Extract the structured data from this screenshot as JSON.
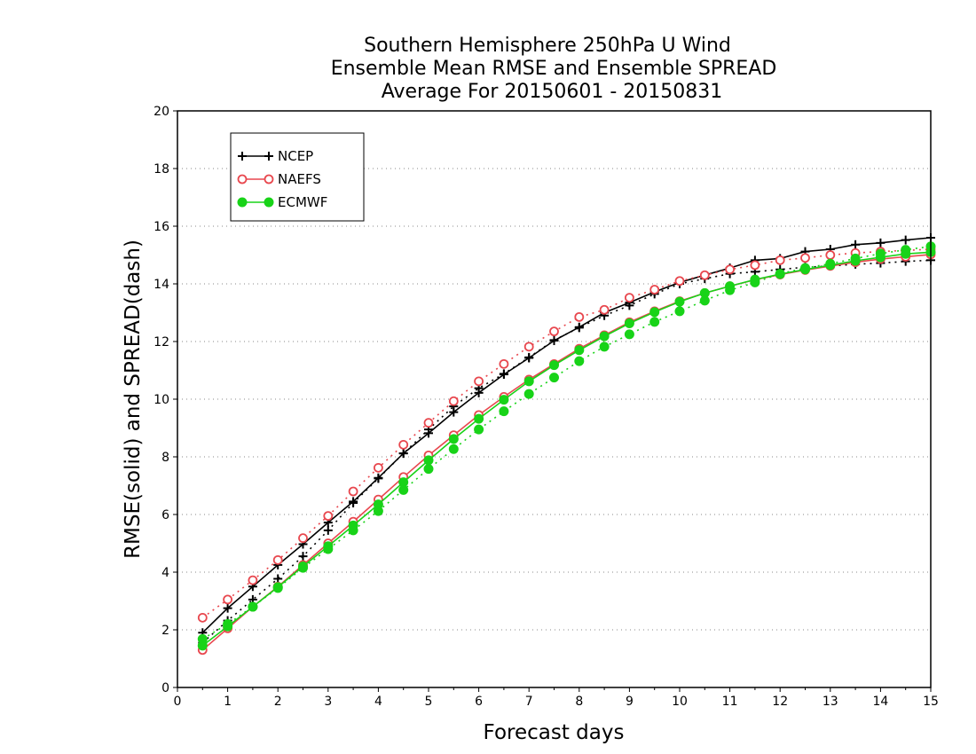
{
  "chart_data": {
    "type": "line",
    "title": [
      "Southern Hemisphere 250hPa U Wind",
      "Ensemble Mean RMSE and Ensemble SPREAD",
      "Average For 20150601 - 20150831"
    ],
    "xlabel": "Forecast days",
    "ylabel": "RMSE(solid) and SPREAD(dash)",
    "xlim": [
      0,
      15
    ],
    "ylim": [
      0,
      20
    ],
    "x_ticks": [
      "0",
      "1",
      "2",
      "3",
      "4",
      "5",
      "6",
      "7",
      "8",
      "9",
      "10",
      "11",
      "12",
      "13",
      "14",
      "15"
    ],
    "y_ticks": [
      "0",
      "2",
      "4",
      "6",
      "8",
      "10",
      "12",
      "14",
      "16",
      "18",
      "20"
    ],
    "grid": "horizontal dotted",
    "legend_position": "top-left",
    "x": [
      0.5,
      1,
      1.5,
      2,
      2.5,
      3,
      3.5,
      4,
      4.5,
      5,
      5.5,
      6,
      6.5,
      7,
      7.5,
      8,
      8.5,
      9,
      9.5,
      10,
      10.5,
      11,
      11.5,
      12,
      12.5,
      13,
      13.5,
      14,
      14.5,
      15
    ],
    "series": [
      {
        "name": "NCEP",
        "color": "#000000",
        "marker": "plus",
        "rmse": [
          1.9,
          2.75,
          3.5,
          4.25,
          4.97,
          5.72,
          6.45,
          7.27,
          8.12,
          8.82,
          9.55,
          10.22,
          10.86,
          11.43,
          12.03,
          12.5,
          13.0,
          13.35,
          13.72,
          14.05,
          14.3,
          14.55,
          14.82,
          14.88,
          15.12,
          15.2,
          15.36,
          15.42,
          15.52,
          15.6
        ],
        "spread": [
          1.55,
          2.32,
          3.05,
          3.77,
          4.55,
          5.45,
          6.4,
          7.25,
          8.12,
          8.95,
          9.75,
          10.38,
          10.88,
          11.45,
          12.05,
          12.48,
          12.9,
          13.25,
          13.65,
          14.0,
          14.18,
          14.35,
          14.42,
          14.5,
          14.58,
          14.62,
          14.68,
          14.72,
          14.78,
          14.82
        ]
      },
      {
        "name": "NAEFS",
        "color": "#e8474e",
        "marker": "open-circle",
        "rmse": [
          1.3,
          2.05,
          2.8,
          3.5,
          4.25,
          5.0,
          5.75,
          6.52,
          7.3,
          8.05,
          8.75,
          9.45,
          10.08,
          10.68,
          11.22,
          11.75,
          12.22,
          12.67,
          13.05,
          13.4,
          13.68,
          13.92,
          14.14,
          14.32,
          14.48,
          14.62,
          14.75,
          14.86,
          14.94,
          15.02
        ],
        "spread": [
          2.42,
          3.05,
          3.72,
          4.42,
          5.18,
          5.95,
          6.8,
          7.62,
          8.42,
          9.18,
          9.93,
          10.62,
          11.22,
          11.82,
          12.35,
          12.85,
          13.1,
          13.52,
          13.8,
          14.1,
          14.3,
          14.5,
          14.65,
          14.82,
          14.9,
          15.0,
          15.07,
          15.12,
          15.16,
          15.2
        ]
      },
      {
        "name": "ECMWF",
        "color": "#18d318",
        "marker": "filled-circle",
        "rmse": [
          1.45,
          2.12,
          2.8,
          3.48,
          4.2,
          4.9,
          5.62,
          6.35,
          7.12,
          7.88,
          8.62,
          9.32,
          9.98,
          10.62,
          11.18,
          11.7,
          12.18,
          12.63,
          13.02,
          13.38,
          13.68,
          13.92,
          14.15,
          14.34,
          14.5,
          14.65,
          14.8,
          14.92,
          15.04,
          15.1
        ],
        "spread": [
          1.68,
          2.2,
          2.8,
          3.45,
          4.15,
          4.8,
          5.45,
          6.12,
          6.85,
          7.58,
          8.27,
          8.95,
          9.58,
          10.18,
          10.75,
          11.32,
          11.82,
          12.25,
          12.68,
          13.05,
          13.42,
          13.78,
          14.05,
          14.35,
          14.55,
          14.7,
          14.88,
          15.05,
          15.18,
          15.3
        ]
      }
    ]
  }
}
